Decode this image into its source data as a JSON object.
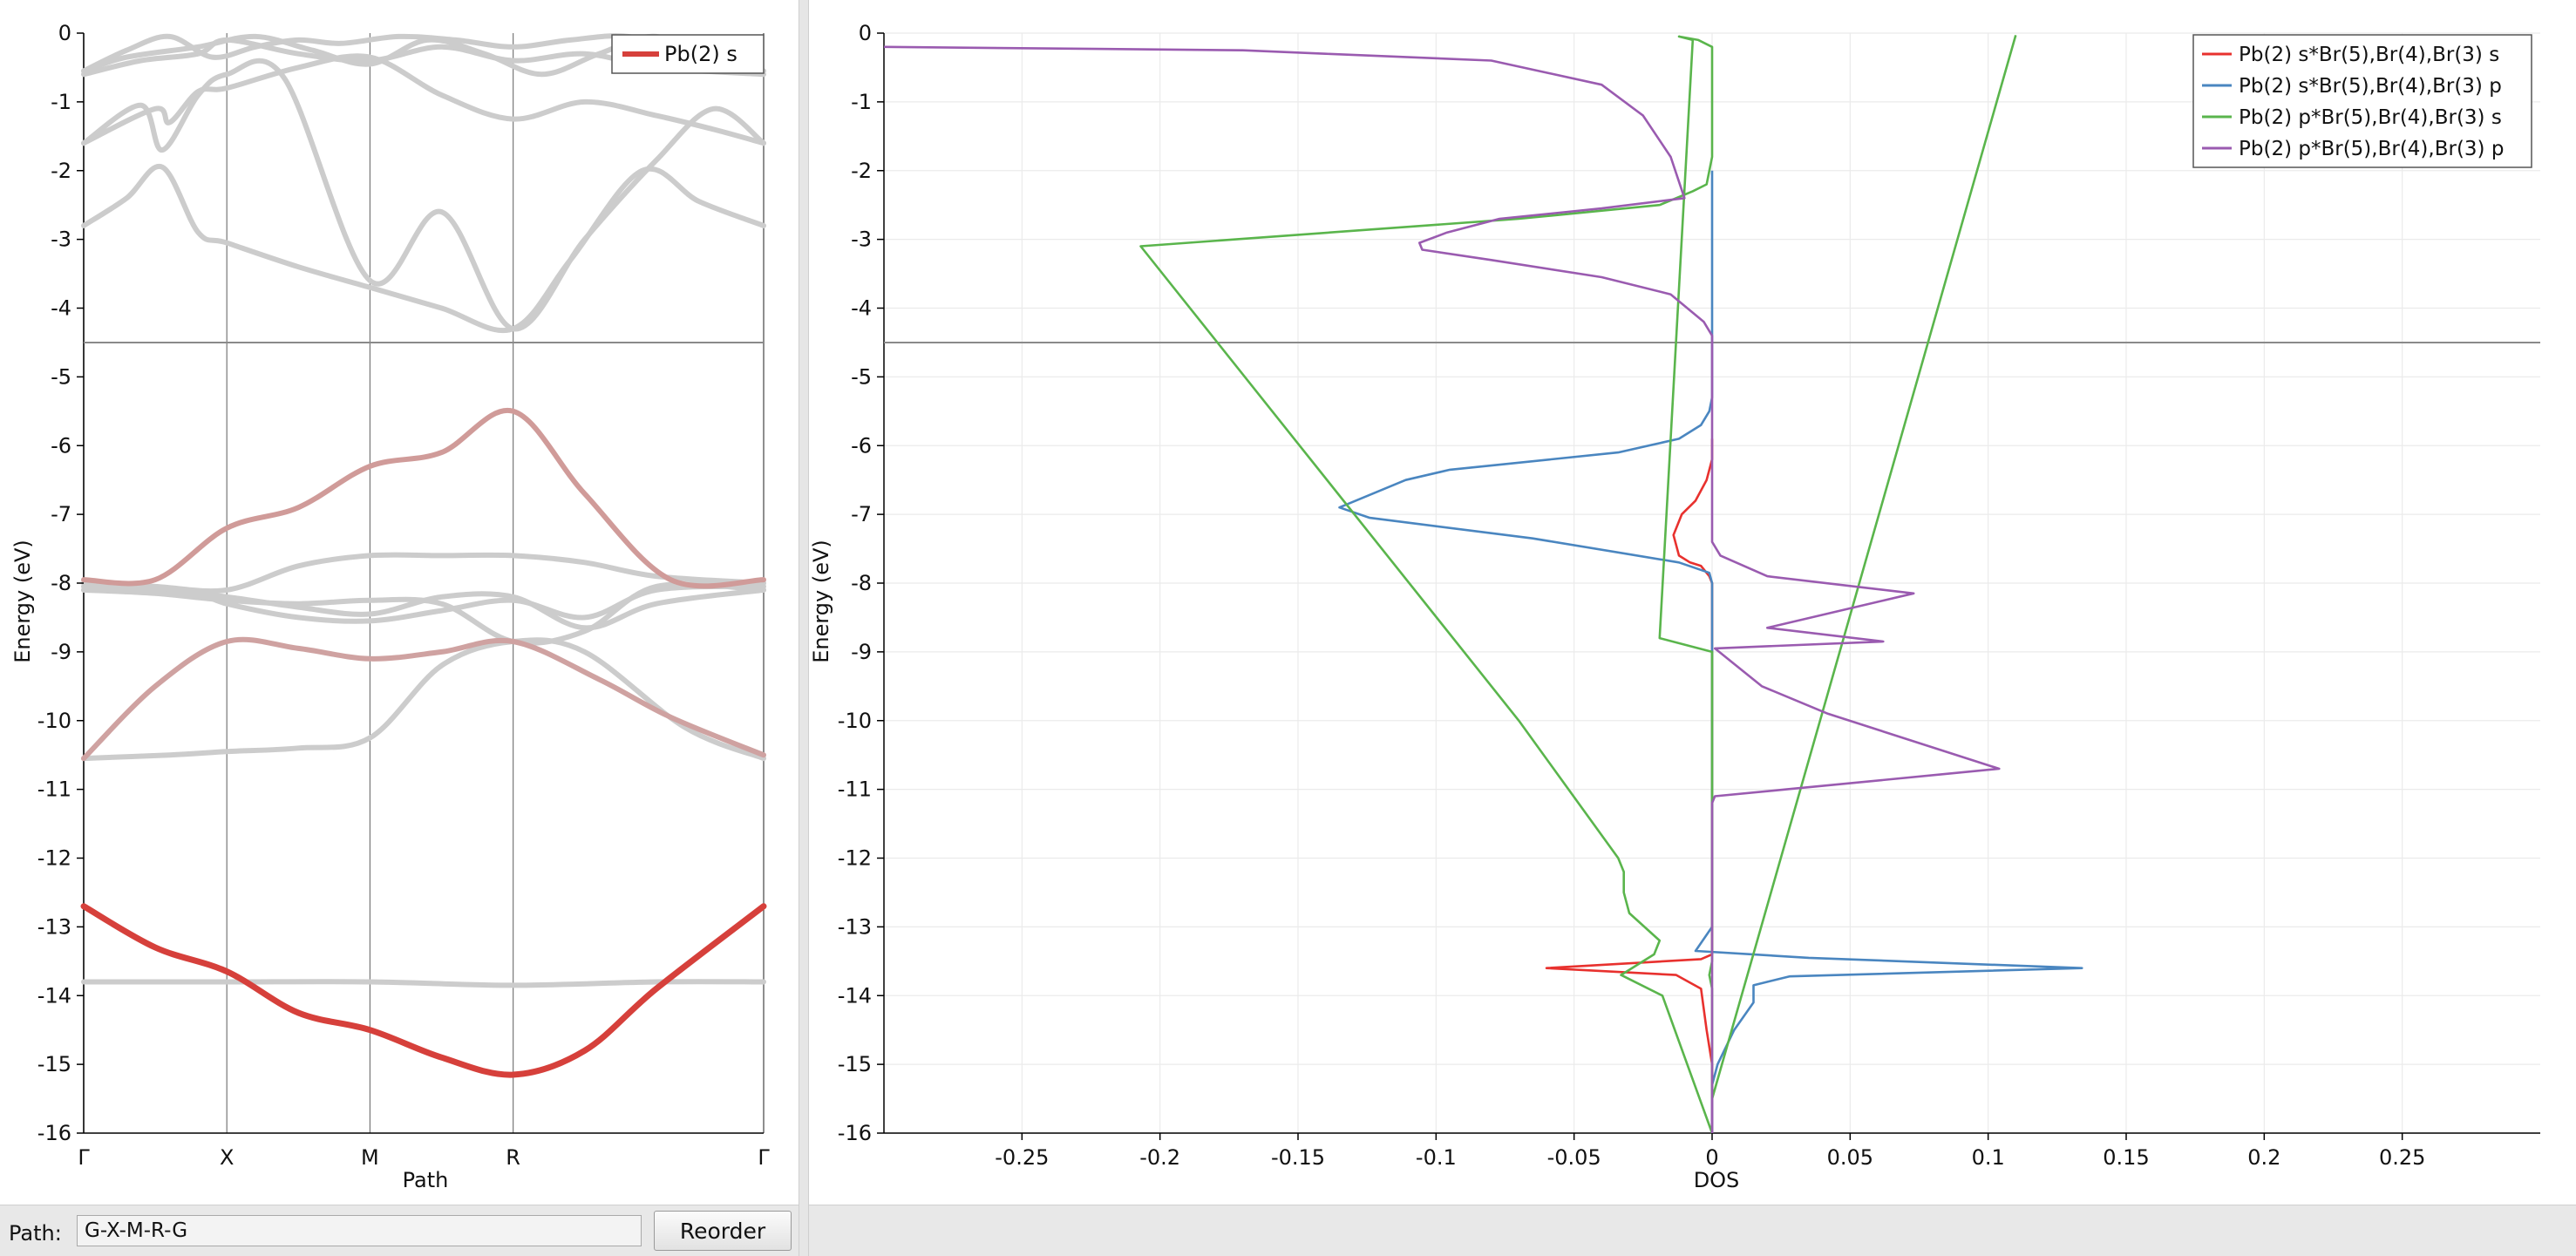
{
  "bottom": {
    "path_label": "Path:",
    "path_value": "G-X-M-R-G",
    "reorder_label": "Reorder"
  },
  "colors": {
    "grid": "#ebebeb",
    "axis": "#000000",
    "band": "#cccccc",
    "highlight": "#d6403b",
    "series": [
      "#e8312e",
      "#4a86c0",
      "#5ab54c",
      "#9a5bb0"
    ],
    "fermi": "#8a8a8a"
  },
  "chart_data": [
    {
      "type": "line",
      "title": "",
      "xlabel": "Path",
      "ylabel": "Energy (eV)",
      "ylim": [
        -16,
        0
      ],
      "yticks": [
        0,
        -1,
        -2,
        -3,
        -4,
        -5,
        -6,
        -7,
        -8,
        -9,
        -10,
        -11,
        -12,
        -13,
        -14,
        -15,
        -16
      ],
      "kpoints": [
        "Γ",
        "X",
        "M",
        "R",
        "Γ"
      ],
      "kpoint_positions": [
        0,
        1,
        2,
        3,
        4.75
      ],
      "fermi_level": -4.5,
      "legend": {
        "label": "Pb(2)  s",
        "placement": "top-right"
      },
      "bands": [
        {
          "x": [
            0,
            0.5,
            1,
            1.5,
            2,
            2.5,
            3,
            3.5,
            4,
            4.75
          ],
          "y": [
            -12.7,
            -13.3,
            -13.65,
            -14.25,
            -14.5,
            -14.9,
            -15.15,
            -14.8,
            -13.9,
            -12.7
          ],
          "weight": 1.0
        },
        {
          "x": [
            0,
            1,
            2,
            3,
            4,
            4.75
          ],
          "y": [
            -13.8,
            -13.8,
            -13.8,
            -13.85,
            -13.8,
            -13.8
          ],
          "weight": 0
        },
        {
          "x": [
            0,
            0.6,
            1,
            1.5,
            2,
            2.5,
            3,
            3.5,
            4.2,
            4.75
          ],
          "y": [
            -10.55,
            -10.5,
            -10.45,
            -10.4,
            -10.25,
            -9.2,
            -8.85,
            -9.0,
            -10.1,
            -10.55
          ],
          "weight": 0
        },
        {
          "x": [
            0,
            0.5,
            1,
            1.5,
            2,
            2.5,
            3,
            3.6,
            4.1,
            4.75
          ],
          "y": [
            -10.55,
            -9.5,
            -8.85,
            -8.95,
            -9.1,
            -9.0,
            -8.85,
            -9.4,
            -9.95,
            -10.5
          ],
          "weight": 0.3
        },
        {
          "x": [
            0,
            0.5,
            1,
            1.5,
            2,
            2.5,
            3,
            3.5,
            4.1,
            4.75
          ],
          "y": [
            -7.95,
            -7.95,
            -7.2,
            -6.9,
            -6.3,
            -6.1,
            -5.5,
            -6.7,
            -7.95,
            -7.95
          ],
          "weight": 0.35
        },
        {
          "x": [
            0,
            0.5,
            1,
            1.5,
            2,
            2.5,
            3,
            3.5,
            4,
            4.75
          ],
          "y": [
            -8.0,
            -8.05,
            -8.1,
            -7.75,
            -7.6,
            -7.6,
            -7.6,
            -7.7,
            -7.9,
            -8.0
          ],
          "weight": 0
        },
        {
          "x": [
            0,
            0.5,
            1,
            1.5,
            2,
            2.5,
            3,
            3.5,
            4,
            4.75
          ],
          "y": [
            -8.1,
            -8.1,
            -8.2,
            -8.35,
            -8.45,
            -8.2,
            -8.2,
            -8.65,
            -8.3,
            -8.1
          ],
          "weight": 0
        },
        {
          "x": [
            0,
            0.5,
            1,
            1.5,
            2,
            2.5,
            3,
            3.5,
            4,
            4.75
          ],
          "y": [
            -8.1,
            -8.15,
            -8.25,
            -8.3,
            -8.25,
            -8.3,
            -8.85,
            -8.7,
            -8.05,
            -8.1
          ],
          "weight": 0
        },
        {
          "x": [
            0,
            0.7,
            1,
            1.5,
            2,
            2.5,
            3,
            3.5,
            4,
            4.75
          ],
          "y": [
            -8.05,
            -8.1,
            -8.3,
            -8.5,
            -8.55,
            -8.4,
            -8.25,
            -8.5,
            -8.1,
            -8.05
          ],
          "weight": 0
        },
        {
          "x": [
            0,
            0.3,
            0.55,
            0.8,
            1,
            1.5,
            2,
            2.5,
            3,
            3.4,
            3.9,
            4.3,
            4.75
          ],
          "y": [
            -2.8,
            -2.4,
            -1.95,
            -2.9,
            -3.05,
            -3.4,
            -3.7,
            -4.0,
            -4.3,
            -3.3,
            -2.0,
            -2.45,
            -2.8
          ],
          "weight": 0
        },
        {
          "x": [
            0,
            0.4,
            0.55,
            0.8,
            1,
            1.4,
            2,
            2.5,
            3,
            3.5,
            4,
            4.4,
            4.75
          ],
          "y": [
            -1.6,
            -1.05,
            -1.7,
            -0.9,
            -0.6,
            -0.65,
            -3.6,
            -2.6,
            -4.3,
            -3.0,
            -1.85,
            -1.1,
            -1.6
          ],
          "weight": 0
        },
        {
          "x": [
            0,
            0.5,
            0.6,
            0.8,
            1,
            1.5,
            2,
            2.5,
            3,
            3.5,
            4,
            4.4,
            4.75
          ],
          "y": [
            -1.6,
            -1.1,
            -1.3,
            -0.85,
            -0.8,
            -0.5,
            -0.35,
            -0.9,
            -1.25,
            -1.0,
            -1.2,
            -1.4,
            -1.6
          ],
          "weight": 0
        },
        {
          "x": [
            0,
            0.4,
            0.8,
            1,
            1.5,
            2,
            2.5,
            3,
            3.5,
            4,
            4.75
          ],
          "y": [
            -0.6,
            -0.4,
            -0.3,
            -0.1,
            -0.3,
            -0.4,
            -0.2,
            -0.4,
            -0.3,
            -0.5,
            -0.6
          ],
          "weight": 0
        },
        {
          "x": [
            0,
            0.3,
            0.6,
            0.9,
            1.2,
            1.5,
            1.8,
            2.2,
            2.6,
            3,
            3.4,
            3.8,
            4.2,
            4.75
          ],
          "y": [
            -0.55,
            -0.25,
            -0.05,
            -0.35,
            -0.2,
            -0.1,
            -0.15,
            -0.05,
            -0.1,
            -0.2,
            -0.1,
            -0.05,
            -0.3,
            -0.55
          ],
          "weight": 0
        },
        {
          "x": [
            0,
            0.3,
            0.8,
            1.2,
            1.6,
            2,
            2.4,
            2.8,
            3.2,
            3.6,
            4,
            4.4,
            4.75
          ],
          "y": [
            -0.55,
            -0.35,
            -0.2,
            -0.05,
            -0.25,
            -0.45,
            -0.1,
            -0.3,
            -0.6,
            -0.3,
            -0.05,
            -0.45,
            -0.55
          ],
          "weight": 0
        }
      ]
    },
    {
      "type": "line",
      "title": "",
      "xlabel": "DOS",
      "ylabel": "Energy (eV)",
      "ylim": [
        -16,
        0
      ],
      "xlim": [
        -0.3,
        0.3
      ],
      "xticks": [
        -0.25,
        -0.2,
        -0.15,
        -0.1,
        -0.05,
        0,
        0.05,
        0.1,
        0.15,
        0.2,
        0.25
      ],
      "yticks": [
        0,
        -1,
        -2,
        -3,
        -4,
        -5,
        -6,
        -7,
        -8,
        -9,
        -10,
        -11,
        -12,
        -13,
        -14,
        -15,
        -16
      ],
      "fermi_level": -4.5,
      "grid": true,
      "legend_placement": "top-right",
      "series": [
        {
          "name": "Pb(2) s*Br(5),Br(4),Br(3) s",
          "x": [
            0,
            0,
            -0.002,
            -0.006,
            -0.011,
            -0.014,
            -0.012,
            -0.008,
            -0.004,
            -0.001,
            0,
            0,
            0,
            0,
            0,
            0,
            -0.004,
            -0.06,
            -0.013,
            -0.004,
            -0.002,
            0,
            0
          ],
          "y": [
            -5.9,
            -6.2,
            -6.5,
            -6.8,
            -7.0,
            -7.3,
            -7.6,
            -7.7,
            -7.75,
            -7.9,
            -8.0,
            -9.0,
            -12.0,
            -13.0,
            -13.3,
            -13.4,
            -13.47,
            -13.6,
            -13.7,
            -13.9,
            -14.5,
            -15.0,
            -16.0
          ]
        },
        {
          "name": "Pb(2) s*Br(5),Br(4),Br(3) p",
          "x": [
            0,
            0,
            -0.001,
            -0.004,
            -0.012,
            -0.034,
            -0.095,
            -0.111,
            -0.135,
            -0.124,
            -0.065,
            -0.012,
            -0.001,
            0,
            0,
            0,
            -0.006,
            0.035,
            0.134,
            0.028,
            0.015,
            0.015,
            0.008,
            0.002,
            0,
            0
          ],
          "y": [
            -2.0,
            -5.3,
            -5.5,
            -5.7,
            -5.9,
            -6.1,
            -6.35,
            -6.5,
            -6.9,
            -7.05,
            -7.35,
            -7.7,
            -7.85,
            -8.0,
            -9.0,
            -13.0,
            -13.35,
            -13.45,
            -13.6,
            -13.72,
            -13.85,
            -14.1,
            -14.5,
            -15.0,
            -15.3,
            -16.0
          ]
        },
        {
          "name": "Pb(2) p*Br(5),Br(4),Br(3) s",
          "x": [
            0,
            -0.018,
            -0.033,
            -0.021,
            -0.019,
            -0.03,
            -0.032,
            -0.032,
            -0.034,
            -0.07,
            -0.207,
            -0.07,
            -0.019,
            -0.007,
            -0.002,
            0,
            0,
            0,
            0,
            -0.005,
            -0.012,
            -0.007,
            -0.019,
            0,
            0,
            0,
            0,
            0,
            0,
            -0.001,
            0,
            0.0,
            0,
            0.11
          ],
          "y": [
            -16.0,
            -14.0,
            -13.7,
            -13.4,
            -13.2,
            -12.8,
            -12.5,
            -12.2,
            -12.0,
            -10.0,
            -3.1,
            -2.7,
            -2.5,
            -2.3,
            -2.2,
            -1.8,
            -1.0,
            -0.7,
            -0.2,
            -0.1,
            -0.05,
            -0.1,
            -8.8,
            -9.0,
            -9.5,
            -10.5,
            -11.5,
            -12.5,
            -13.5,
            -13.7,
            -13.9,
            -15.0,
            -15.5,
            -0.03
          ]
        },
        {
          "name": "Pb(2) p*Br(5),Br(4),Br(3) p",
          "x": [
            -0.3,
            -0.17,
            -0.14,
            -0.08,
            -0.04,
            -0.025,
            -0.015,
            -0.01,
            -0.04,
            -0.077,
            -0.096,
            -0.106,
            -0.105,
            -0.08,
            -0.04,
            -0.015,
            -0.003,
            0,
            0,
            0.003,
            0.02,
            0.073,
            0.02,
            0.062,
            0.001,
            0.018,
            0.042,
            0.104,
            0.027,
            0.001,
            0,
            0
          ],
          "y": [
            -0.2,
            -0.25,
            -0.3,
            -0.4,
            -0.75,
            -1.2,
            -1.8,
            -2.4,
            -2.55,
            -2.7,
            -2.9,
            -3.05,
            -3.15,
            -3.3,
            -3.55,
            -3.8,
            -4.2,
            -4.4,
            -7.4,
            -7.6,
            -7.9,
            -8.15,
            -8.65,
            -8.85,
            -8.95,
            -9.5,
            -9.9,
            -10.7,
            -11.0,
            -11.1,
            -11.2,
            -16.0
          ]
        }
      ]
    }
  ]
}
